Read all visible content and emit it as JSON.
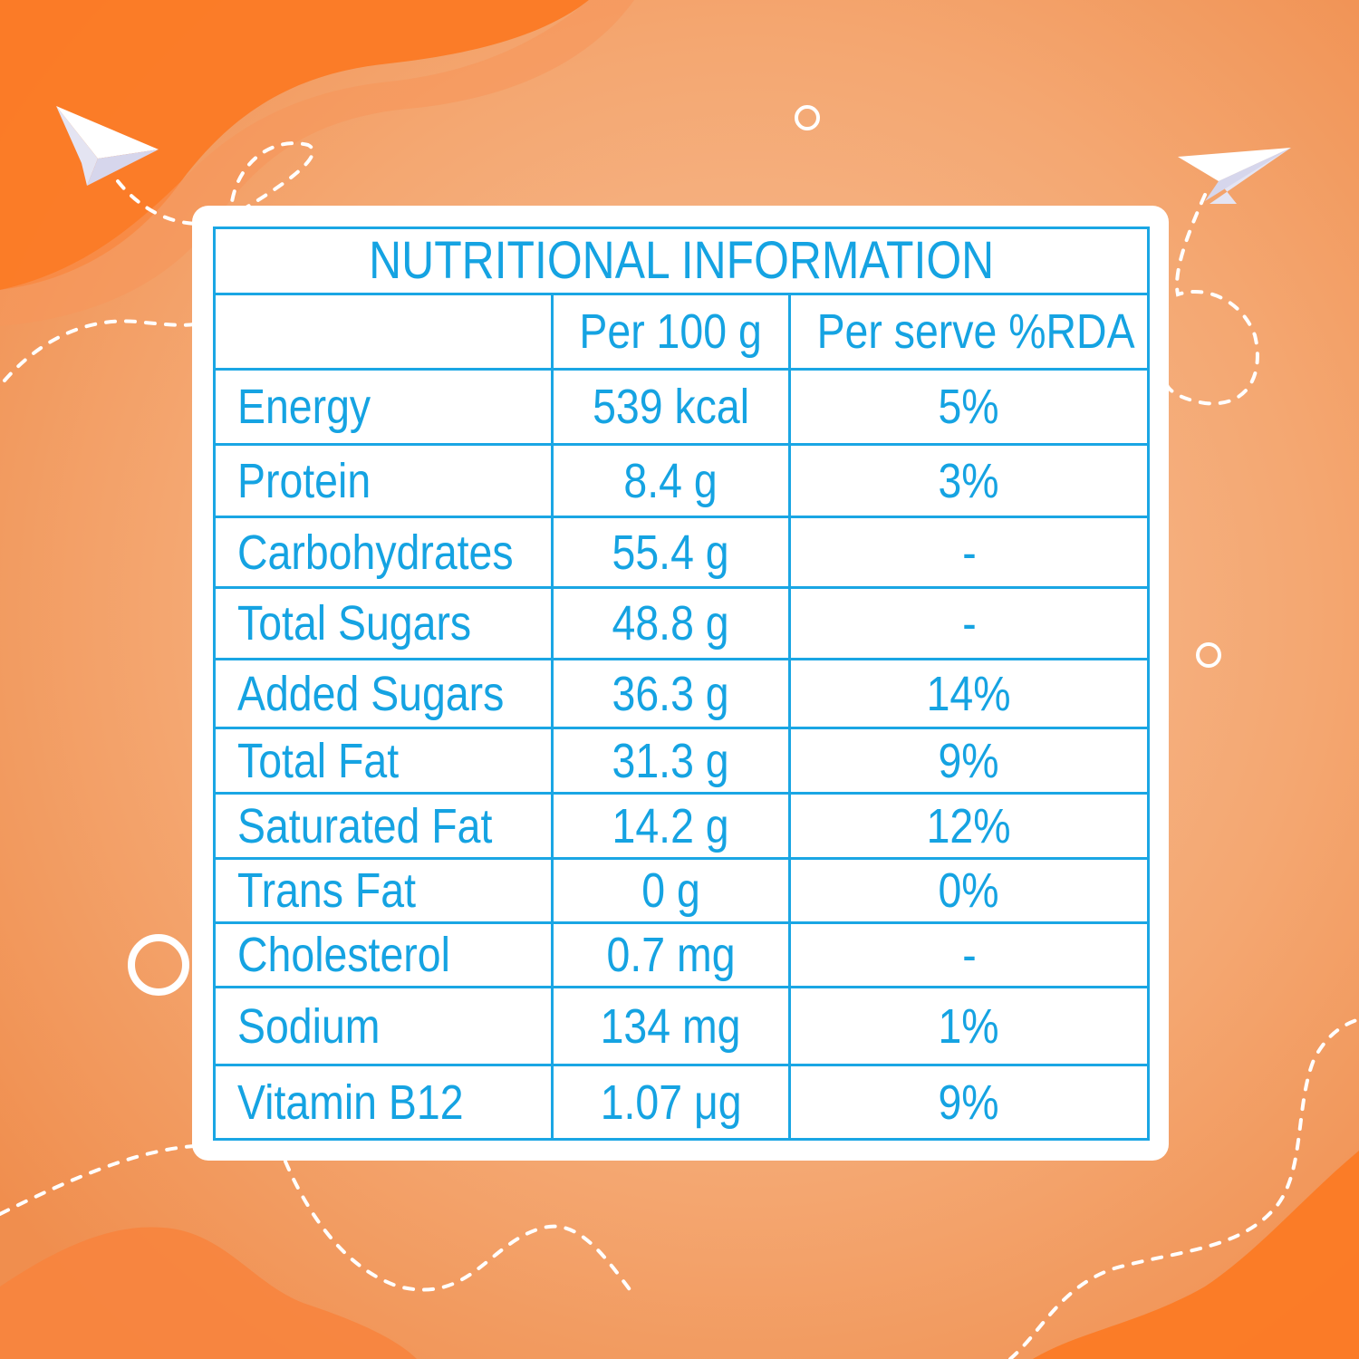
{
  "colors": {
    "background_light": "#f6b488",
    "background_mid": "#f29a60",
    "blob_dark": "#fb7a25",
    "table_blue": "#15a3e2",
    "card": "#ffffff"
  },
  "icons": [
    "paper-plane-icon",
    "paper-plane-icon",
    "circle-outline-icon"
  ],
  "table": {
    "title": "NUTRITIONAL INFORMATION",
    "headers": [
      "",
      "Per 100 g",
      "Per serve %RDA"
    ],
    "rows": [
      {
        "name": "Energy",
        "per100": "539 kcal",
        "rda": "5%"
      },
      {
        "name": "Protein",
        "per100": "8.4 g",
        "rda": "3%"
      },
      {
        "name": "Carbohydrates",
        "per100": "55.4 g",
        "rda": "-"
      },
      {
        "name": "Total Sugars",
        "per100": "48.8 g",
        "rda": "-"
      },
      {
        "name": "Added Sugars",
        "per100": "36.3 g",
        "rda": "14%"
      },
      {
        "name": "Total Fat",
        "per100": "31.3 g",
        "rda": "9%"
      },
      {
        "name": "Saturated Fat",
        "per100": "14.2 g",
        "rda": "12%"
      },
      {
        "name": "Trans Fat",
        "per100": "0 g",
        "rda": "0%"
      },
      {
        "name": "Cholesterol",
        "per100": "0.7 mg",
        "rda": "-"
      },
      {
        "name": "Sodium",
        "per100": "134 mg",
        "rda": "1%"
      },
      {
        "name": "Vitamin B12",
        "per100": "1.07 μg",
        "rda": "9%"
      }
    ]
  }
}
